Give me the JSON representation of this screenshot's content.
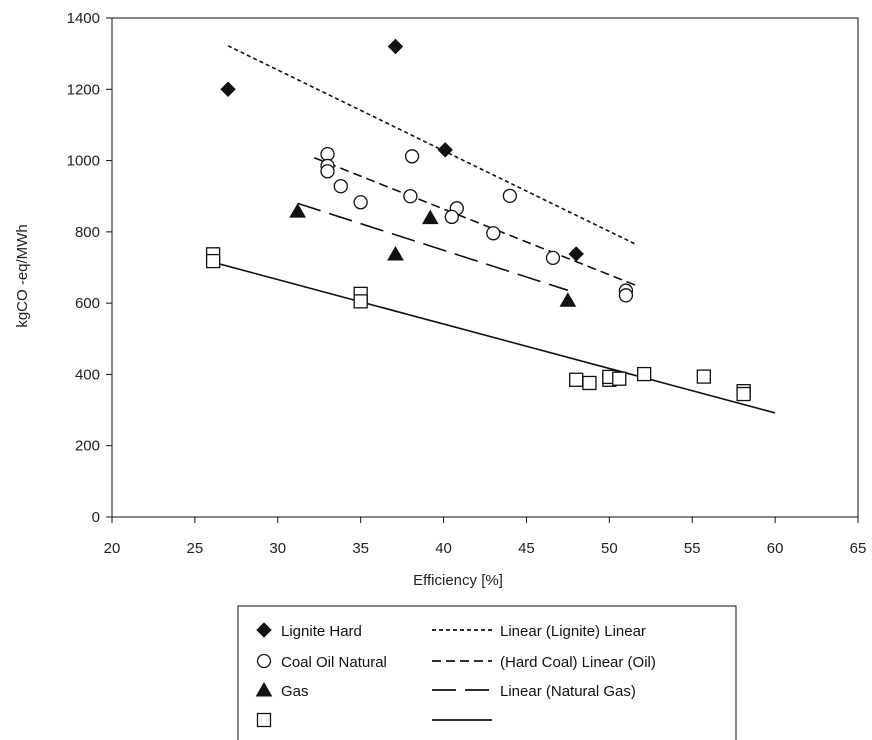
{
  "chart_data": {
    "type": "scatter",
    "xlabel": "Efficiency [%]",
    "ylabel": "kgCO -eq/MWh",
    "xlim": [
      20,
      65
    ],
    "ylim": [
      0,
      1400
    ],
    "xticks": [
      "20",
      "25",
      "30",
      "35",
      "40",
      "45",
      "50",
      "55",
      "60",
      "65"
    ],
    "yticks": [
      "0",
      "200",
      "400",
      "600",
      "800",
      "1000",
      "1200",
      "1400"
    ],
    "grid": false,
    "legend_position": "bottom",
    "series": [
      {
        "name": "Lignite Hard",
        "marker": "diamond-filled",
        "points": [
          [
            27,
            1200
          ],
          [
            37.1,
            1320
          ],
          [
            40.1,
            1030
          ],
          [
            48,
            738
          ]
        ]
      },
      {
        "name": "Coal Oil Natural",
        "marker": "circle-open",
        "points": [
          [
            33,
            1018
          ],
          [
            33,
            985
          ],
          [
            33,
            970
          ],
          [
            33.8,
            928
          ],
          [
            35,
            883
          ],
          [
            38.1,
            1012
          ],
          [
            38,
            900
          ],
          [
            40.8,
            866
          ],
          [
            40.5,
            842
          ],
          [
            43,
            796
          ],
          [
            44,
            901
          ],
          [
            46.6,
            727
          ],
          [
            51,
            635
          ],
          [
            51,
            622
          ]
        ]
      },
      {
        "name": "Gas",
        "marker": "triangle-filled",
        "points": [
          [
            31.2,
            858
          ],
          [
            37.1,
            738
          ],
          [
            39.2,
            840
          ],
          [
            47.5,
            608
          ]
        ]
      },
      {
        "name": "",
        "marker": "square-open",
        "points": [
          [
            26.1,
            737
          ],
          [
            26.1,
            718
          ],
          [
            35,
            626
          ],
          [
            35,
            605
          ],
          [
            48,
            385
          ],
          [
            48.8,
            376
          ],
          [
            50,
            385
          ],
          [
            50,
            393
          ],
          [
            50.6,
            388
          ],
          [
            52.1,
            401
          ],
          [
            55.7,
            394
          ],
          [
            58.1,
            353
          ],
          [
            58.1,
            345
          ]
        ]
      }
    ],
    "trendlines": [
      {
        "name": "Linear (Lignite) Linear",
        "style": "short-dash",
        "from": [
          27,
          1322
        ],
        "to": [
          51.6,
          765
        ]
      },
      {
        "name": "(Hard Coal) Linear (Oil)",
        "style": "medium-dash",
        "from": [
          32.2,
          1008
        ],
        "to": [
          51.6,
          650
        ]
      },
      {
        "name": "Linear (Natural Gas)",
        "style": "long-dash",
        "from": [
          31.2,
          880
        ],
        "to": [
          47.5,
          636
        ]
      },
      {
        "name": "",
        "style": "solid",
        "from": [
          26,
          716
        ],
        "to": [
          60,
          292
        ]
      }
    ],
    "legend": {
      "markers": [
        {
          "marker": "diamond-filled",
          "label": "Lignite Hard"
        },
        {
          "marker": "circle-open",
          "label": "Coal Oil Natural"
        },
        {
          "marker": "triangle-filled",
          "label": "Gas"
        },
        {
          "marker": "square-open",
          "label": ""
        }
      ],
      "lines": [
        {
          "style": "short-dash",
          "label": "Linear (Lignite) Linear"
        },
        {
          "style": "medium-dash",
          "label": "(Hard Coal) Linear (Oil)"
        },
        {
          "style": "long-dash",
          "label": "Linear (Natural Gas)"
        },
        {
          "style": "solid",
          "label": ""
        }
      ]
    }
  }
}
